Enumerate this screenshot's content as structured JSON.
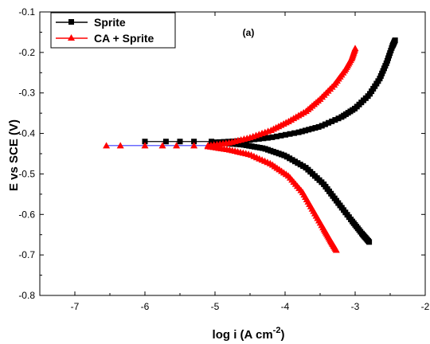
{
  "chart_data": {
    "type": "line",
    "panel_label": "(a)",
    "xlabel_main": "log i (A cm",
    "xlabel_sup": "-2",
    "xlabel_end": ")",
    "ylabel": "E vs SCE (V)",
    "xlim": [
      -7.5,
      -2
    ],
    "ylim": [
      -0.8,
      -0.1
    ],
    "xticks": [
      -7,
      -6,
      -5,
      -4,
      -3,
      -2
    ],
    "xtick_labels": [
      "-7",
      "-6",
      "-5",
      "-4",
      "-3",
      "-2"
    ],
    "yticks": [
      -0.8,
      -0.7,
      -0.6,
      -0.5,
      -0.4,
      -0.3,
      -0.2,
      -0.1
    ],
    "ytick_labels": [
      "-0.8",
      "-0.7",
      "-0.6",
      "-0.5",
      "-0.4",
      "-0.3",
      "-0.2",
      "-0.1"
    ],
    "grid": false,
    "legend_position": "top-left",
    "series": [
      {
        "name": "Sprite",
        "color": "#000000",
        "marker": "square",
        "flat": {
          "x": [
            -6.0,
            -5.7,
            -5.5,
            -5.3,
            -5.05
          ],
          "y": -0.42
        },
        "anodic": [
          [
            -5.0,
            -0.422
          ],
          [
            -4.6,
            -0.418
          ],
          [
            -4.2,
            -0.41
          ],
          [
            -3.8,
            -0.397
          ],
          [
            -3.5,
            -0.383
          ],
          [
            -3.2,
            -0.36
          ],
          [
            -3.0,
            -0.338
          ],
          [
            -2.8,
            -0.305
          ],
          [
            -2.65,
            -0.265
          ],
          [
            -2.55,
            -0.225
          ],
          [
            -2.47,
            -0.185
          ],
          [
            -2.43,
            -0.17
          ]
        ],
        "cathodic": [
          [
            -5.0,
            -0.422
          ],
          [
            -4.6,
            -0.428
          ],
          [
            -4.3,
            -0.437
          ],
          [
            -4.0,
            -0.455
          ],
          [
            -3.7,
            -0.485
          ],
          [
            -3.45,
            -0.525
          ],
          [
            -3.25,
            -0.57
          ],
          [
            -3.05,
            -0.615
          ],
          [
            -2.9,
            -0.648
          ],
          [
            -2.8,
            -0.668
          ]
        ]
      },
      {
        "name": "CA + Sprite",
        "color": "#ff0000",
        "marker": "triangle",
        "flat": {
          "x": [
            -6.55,
            -6.35,
            -6.0,
            -5.75,
            -5.55,
            -5.3,
            -5.1
          ],
          "y": -0.43
        },
        "anodic": [
          [
            -5.1,
            -0.43
          ],
          [
            -4.8,
            -0.423
          ],
          [
            -4.5,
            -0.41
          ],
          [
            -4.2,
            -0.392
          ],
          [
            -3.95,
            -0.37
          ],
          [
            -3.7,
            -0.345
          ],
          [
            -3.5,
            -0.315
          ],
          [
            -3.3,
            -0.28
          ],
          [
            -3.15,
            -0.245
          ],
          [
            -3.05,
            -0.215
          ],
          [
            -3.0,
            -0.19
          ]
        ],
        "cathodic": [
          [
            -5.1,
            -0.432
          ],
          [
            -4.8,
            -0.44
          ],
          [
            -4.5,
            -0.452
          ],
          [
            -4.2,
            -0.475
          ],
          [
            -3.95,
            -0.505
          ],
          [
            -3.75,
            -0.545
          ],
          [
            -3.6,
            -0.59
          ],
          [
            -3.45,
            -0.635
          ],
          [
            -3.35,
            -0.665
          ],
          [
            -3.27,
            -0.688
          ]
        ]
      }
    ]
  }
}
